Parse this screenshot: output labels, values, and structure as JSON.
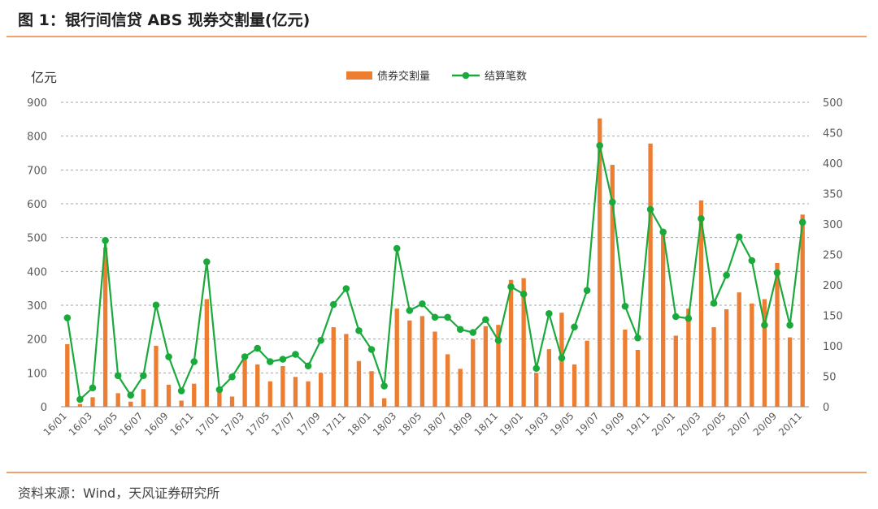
{
  "figure": {
    "title": "图 1：银行间信贷 ABS 现券交割量(亿元)",
    "source": "资料来源：Wind，天风证券研究所"
  },
  "colors": {
    "bar": "#ED7D31",
    "line": "#1AAA3C",
    "grid": "#A6A6A6",
    "rule": "#F0A06B",
    "text": "#595959"
  },
  "chart_data": {
    "type": "bar+line",
    "unit_label": "亿元",
    "x_tick_labels": [
      "16/01",
      "16/03",
      "16/05",
      "16/07",
      "16/09",
      "16/11",
      "17/01",
      "17/03",
      "17/05",
      "17/07",
      "17/09",
      "17/11",
      "18/01",
      "18/03",
      "18/05",
      "18/07",
      "18/09",
      "18/11",
      "19/01",
      "19/03",
      "19/05",
      "19/07",
      "19/09",
      "19/11",
      "20/01",
      "20/03",
      "20/05",
      "20/07",
      "20/09",
      "20/11"
    ],
    "x": [
      "16/01",
      "16/02",
      "16/03",
      "16/04",
      "16/05",
      "16/06",
      "16/07",
      "16/08",
      "16/09",
      "16/10",
      "16/11",
      "16/12",
      "17/01",
      "17/02",
      "17/03",
      "17/04",
      "17/05",
      "17/06",
      "17/07",
      "17/08",
      "17/09",
      "17/10",
      "17/11",
      "17/12",
      "18/01",
      "18/02",
      "18/03",
      "18/04",
      "18/05",
      "18/06",
      "18/07",
      "18/08",
      "18/09",
      "18/10",
      "18/11",
      "18/12",
      "19/01",
      "19/02",
      "19/03",
      "19/04",
      "19/05",
      "19/06",
      "19/07",
      "19/08",
      "19/09",
      "19/10",
      "19/11",
      "19/12",
      "20/01",
      "20/02",
      "20/03",
      "20/04",
      "20/05",
      "20/06",
      "20/07",
      "20/08",
      "20/09",
      "20/10",
      "20/11"
    ],
    "left_axis": {
      "ylim": [
        0,
        900
      ],
      "ticks": [
        0,
        100,
        200,
        300,
        400,
        500,
        600,
        700,
        800,
        900
      ]
    },
    "right_axis": {
      "ylim": [
        0,
        500
      ],
      "ticks": [
        0,
        50,
        100,
        150,
        200,
        250,
        300,
        350,
        400,
        450,
        500
      ]
    },
    "grid": true,
    "legend": {
      "position": "top-center"
    },
    "series": [
      {
        "name": "债券交割量",
        "type": "bar",
        "axis": "left",
        "values": [
          185,
          8,
          28,
          470,
          40,
          15,
          52,
          180,
          65,
          18,
          68,
          318,
          45,
          30,
          138,
          125,
          75,
          120,
          88,
          75,
          100,
          235,
          215,
          135,
          105,
          25,
          290,
          255,
          268,
          222,
          155,
          112,
          200,
          238,
          242,
          375,
          380,
          100,
          170,
          278,
          125,
          195,
          852,
          715,
          228,
          168,
          778,
          510,
          210,
          290,
          610,
          235,
          288,
          338,
          305,
          318,
          425,
          205,
          568
        ]
      },
      {
        "name": "结算笔数",
        "type": "line",
        "axis": "right",
        "values": [
          146,
          12,
          31,
          273,
          51,
          19,
          51,
          167,
          82,
          26,
          74,
          238,
          28,
          49,
          82,
          96,
          74,
          78,
          86,
          67,
          109,
          168,
          194,
          125,
          94,
          34,
          260,
          158,
          169,
          147,
          147,
          127,
          122,
          143,
          109,
          197,
          185,
          63,
          153,
          80,
          131,
          191,
          429,
          336,
          165,
          113,
          324,
          287,
          148,
          145,
          309,
          170,
          216,
          279,
          240,
          134,
          220,
          134,
          303
        ]
      }
    ]
  }
}
